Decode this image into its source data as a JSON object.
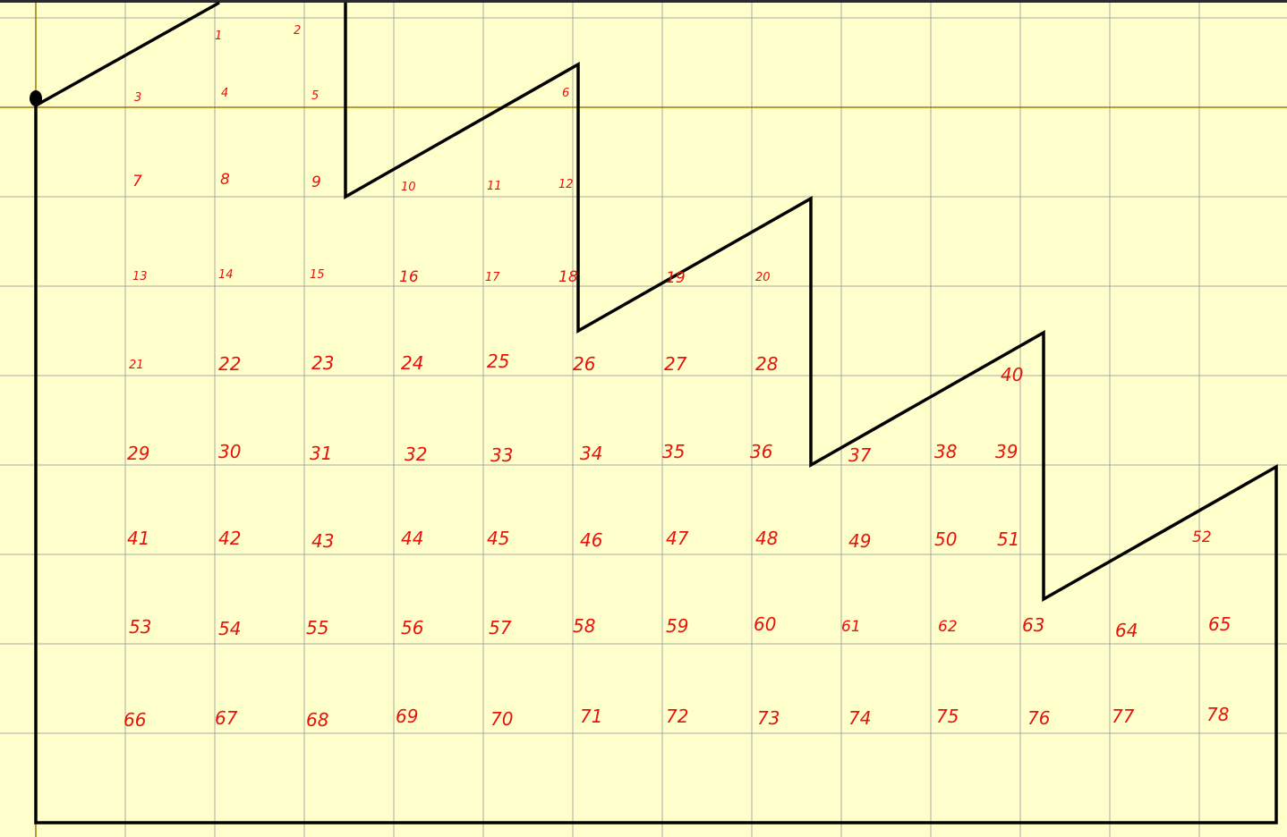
{
  "grid": {
    "line_color": "#a8a8a8",
    "axis_color": "#a07a00",
    "background": "#ffffcc"
  },
  "shape": {
    "stroke_color": "#000000",
    "label_color": "#e8120c"
  },
  "labels": [
    "1",
    "2",
    "3",
    "4",
    "5",
    "6",
    "7",
    "8",
    "9",
    "10",
    "11",
    "12",
    "13",
    "14",
    "15",
    "16",
    "17",
    "18",
    "19",
    "20",
    "21",
    "22",
    "23",
    "24",
    "25",
    "26",
    "27",
    "28",
    "29",
    "30",
    "31",
    "32",
    "33",
    "34",
    "35",
    "36",
    "37",
    "38",
    "39",
    "40",
    "41",
    "42",
    "43",
    "44",
    "45",
    "46",
    "47",
    "48",
    "49",
    "50",
    "51",
    "52",
    "53",
    "54",
    "55",
    "56",
    "57",
    "58",
    "59",
    "60",
    "61",
    "62",
    "63",
    "64",
    "65",
    "66",
    "67",
    "68",
    "69",
    "70",
    "71",
    "72",
    "73",
    "74",
    "75",
    "76",
    "77",
    "78"
  ]
}
